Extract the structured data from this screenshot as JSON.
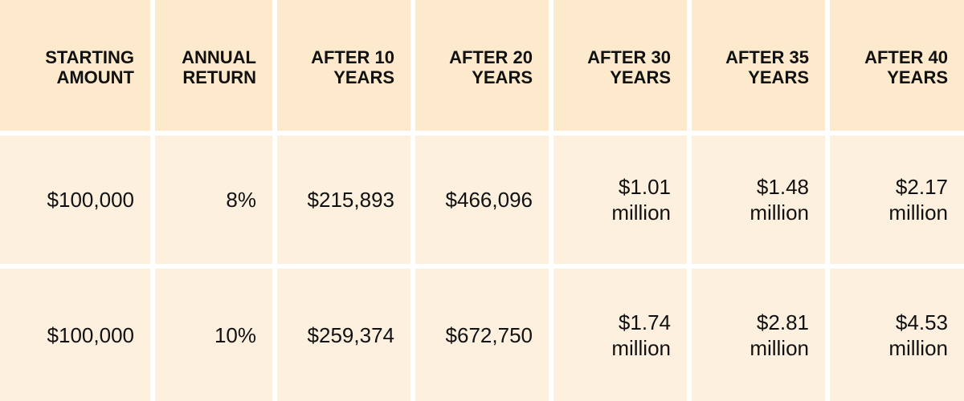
{
  "table": {
    "header": [
      [
        "STARTING",
        "AMOUNT"
      ],
      [
        "ANNUAL",
        "RETURN"
      ],
      [
        "AFTER 10",
        "YEARS"
      ],
      [
        "AFTER 20",
        "YEARS"
      ],
      [
        "AFTER 30",
        "YEARS"
      ],
      [
        "AFTER 35",
        "YEARS"
      ],
      [
        "AFTER 40",
        "YEARS"
      ]
    ],
    "rows": [
      [
        [
          "$100,000"
        ],
        [
          "8%"
        ],
        [
          "$215,893"
        ],
        [
          "$466,096"
        ],
        [
          "$1.01",
          "million"
        ],
        [
          "$1.48",
          "million"
        ],
        [
          "$2.17",
          "million"
        ]
      ],
      [
        [
          "$100,000"
        ],
        [
          "10%"
        ],
        [
          "$259,374"
        ],
        [
          "$672,750"
        ],
        [
          "$1.74",
          "million"
        ],
        [
          "$2.81",
          "million"
        ],
        [
          "$4.53",
          "million"
        ]
      ]
    ]
  }
}
